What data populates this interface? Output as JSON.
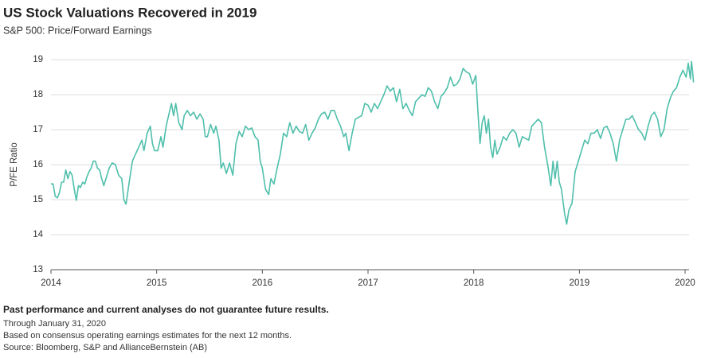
{
  "chart_data": {
    "type": "line",
    "title": "US Stock Valuations Recovered in 2019",
    "subtitle": "S&P 500: Price/Forward Earnings",
    "y_label": "P/FE Ratio",
    "color": "#4fbfab",
    "grid": true,
    "xlim": [
      2014,
      2020.08
    ],
    "xticks": [
      2014,
      2015,
      2016,
      2017,
      2018,
      2019,
      2020
    ],
    "ylim": [
      13,
      19
    ],
    "yticks": [
      13,
      14,
      15,
      16,
      17,
      18,
      19
    ],
    "x": [
      2014.0,
      2014.02,
      2014.04,
      2014.06,
      2014.08,
      2014.1,
      2014.12,
      2014.14,
      2014.16,
      2014.18,
      2014.2,
      2014.22,
      2014.24,
      2014.26,
      2014.28,
      2014.3,
      2014.32,
      2014.34,
      2014.36,
      2014.38,
      2014.4,
      2014.42,
      2014.44,
      2014.46,
      2014.48,
      2014.5,
      2014.52,
      2014.55,
      2014.58,
      2014.61,
      2014.64,
      2014.67,
      2014.69,
      2014.71,
      2014.74,
      2014.77,
      2014.8,
      2014.83,
      2014.86,
      2014.88,
      2014.91,
      2014.94,
      2014.96,
      2014.98,
      2015.01,
      2015.04,
      2015.06,
      2015.09,
      2015.12,
      2015.14,
      2015.16,
      2015.18,
      2015.21,
      2015.24,
      2015.26,
      2015.29,
      2015.32,
      2015.35,
      2015.38,
      2015.41,
      2015.44,
      2015.46,
      2015.48,
      2015.51,
      2015.54,
      2015.56,
      2015.59,
      2015.61,
      2015.63,
      2015.66,
      2015.69,
      2015.72,
      2015.75,
      2015.78,
      2015.81,
      2015.84,
      2015.87,
      2015.9,
      2015.93,
      2015.96,
      2015.98,
      2016.0,
      2016.03,
      2016.06,
      2016.08,
      2016.11,
      2016.14,
      2016.17,
      2016.2,
      2016.23,
      2016.26,
      2016.29,
      2016.32,
      2016.35,
      2016.38,
      2016.41,
      2016.44,
      2016.47,
      2016.5,
      2016.53,
      2016.56,
      2016.59,
      2016.62,
      2016.65,
      2016.68,
      2016.71,
      2016.74,
      2016.77,
      2016.79,
      2016.82,
      2016.85,
      2016.88,
      2016.91,
      2016.94,
      2016.97,
      2017.0,
      2017.03,
      2017.06,
      2017.09,
      2017.12,
      2017.15,
      2017.18,
      2017.21,
      2017.24,
      2017.27,
      2017.3,
      2017.33,
      2017.36,
      2017.39,
      2017.42,
      2017.45,
      2017.48,
      2017.51,
      2017.54,
      2017.57,
      2017.6,
      2017.63,
      2017.66,
      2017.69,
      2017.72,
      2017.75,
      2017.78,
      2017.81,
      2017.84,
      2017.87,
      2017.9,
      2017.93,
      2017.96,
      2017.99,
      2018.02,
      2018.04,
      2018.06,
      2018.08,
      2018.1,
      2018.12,
      2018.14,
      2018.16,
      2018.18,
      2018.2,
      2018.22,
      2018.25,
      2018.28,
      2018.31,
      2018.34,
      2018.37,
      2018.4,
      2018.43,
      2018.46,
      2018.49,
      2018.52,
      2018.55,
      2018.58,
      2018.61,
      2018.64,
      2018.67,
      2018.7,
      2018.73,
      2018.75,
      2018.77,
      2018.79,
      2018.81,
      2018.83,
      2018.86,
      2018.88,
      2018.9,
      2018.93,
      2018.96,
      2018.99,
      2019.02,
      2019.05,
      2019.08,
      2019.11,
      2019.14,
      2019.17,
      2019.2,
      2019.23,
      2019.26,
      2019.29,
      2019.32,
      2019.35,
      2019.38,
      2019.41,
      2019.44,
      2019.47,
      2019.5,
      2019.53,
      2019.56,
      2019.59,
      2019.62,
      2019.65,
      2019.68,
      2019.71,
      2019.74,
      2019.77,
      2019.8,
      2019.83,
      2019.86,
      2019.89,
      2019.92,
      2019.95,
      2019.98,
      2020.01,
      2020.03,
      2020.05,
      2020.06,
      2020.07,
      2020.08
    ],
    "values": [
      15.45,
      15.45,
      15.1,
      15.05,
      15.2,
      15.5,
      15.5,
      15.85,
      15.6,
      15.8,
      15.7,
      15.3,
      14.98,
      15.4,
      15.35,
      15.5,
      15.45,
      15.65,
      15.8,
      15.9,
      16.1,
      16.1,
      15.9,
      15.85,
      15.6,
      15.4,
      15.6,
      15.9,
      16.05,
      16.0,
      15.7,
      15.6,
      15.0,
      14.87,
      15.5,
      16.1,
      16.3,
      16.5,
      16.7,
      16.4,
      16.9,
      17.1,
      16.6,
      16.4,
      16.4,
      16.8,
      16.5,
      17.1,
      17.5,
      17.75,
      17.4,
      17.75,
      17.2,
      17.0,
      17.4,
      17.55,
      17.4,
      17.5,
      17.3,
      17.45,
      17.3,
      16.8,
      16.8,
      17.15,
      16.9,
      17.1,
      16.7,
      15.9,
      16.05,
      15.75,
      16.05,
      15.7,
      16.6,
      16.95,
      16.8,
      17.1,
      17.0,
      17.05,
      16.8,
      16.7,
      16.1,
      15.9,
      15.3,
      15.15,
      15.6,
      15.45,
      15.9,
      16.3,
      16.9,
      16.8,
      17.2,
      16.9,
      17.1,
      16.95,
      16.9,
      17.15,
      16.7,
      16.9,
      17.05,
      17.3,
      17.45,
      17.5,
      17.3,
      17.55,
      17.55,
      17.3,
      17.1,
      16.8,
      16.9,
      16.4,
      16.9,
      17.3,
      17.35,
      17.4,
      17.75,
      17.7,
      17.5,
      17.75,
      17.6,
      17.8,
      18.0,
      18.25,
      18.1,
      18.2,
      17.8,
      18.15,
      17.6,
      17.75,
      17.55,
      17.4,
      17.8,
      17.9,
      18.0,
      17.95,
      18.2,
      18.1,
      17.8,
      17.6,
      17.95,
      18.05,
      18.2,
      18.5,
      18.25,
      18.3,
      18.45,
      18.75,
      18.65,
      18.6,
      18.3,
      18.55,
      17.5,
      16.6,
      17.2,
      17.4,
      16.9,
      17.3,
      16.5,
      16.2,
      16.7,
      16.3,
      16.5,
      16.8,
      16.7,
      16.9,
      17.0,
      16.9,
      16.5,
      16.8,
      16.75,
      16.7,
      17.1,
      17.2,
      17.3,
      17.2,
      16.5,
      16.0,
      15.4,
      16.1,
      15.6,
      16.1,
      15.5,
      15.3,
      14.6,
      14.3,
      14.7,
      14.9,
      15.8,
      16.1,
      16.4,
      16.7,
      16.6,
      16.9,
      16.9,
      17.0,
      16.75,
      17.05,
      17.1,
      16.9,
      16.6,
      16.1,
      16.7,
      17.0,
      17.3,
      17.3,
      17.4,
      17.2,
      17.0,
      16.9,
      16.7,
      17.1,
      17.4,
      17.5,
      17.3,
      16.8,
      17.0,
      17.6,
      17.9,
      18.1,
      18.2,
      18.5,
      18.7,
      18.5,
      18.9,
      18.45,
      18.95,
      18.7,
      18.35
    ],
    "notes": [
      "Past performance and current analyses do not guarantee future results.",
      "Through January 31, 2020",
      "Based on consensus operating earnings estimates for the next 12 months.",
      "Source: Bloomberg, S&P and AllianceBernstein (AB)"
    ]
  }
}
